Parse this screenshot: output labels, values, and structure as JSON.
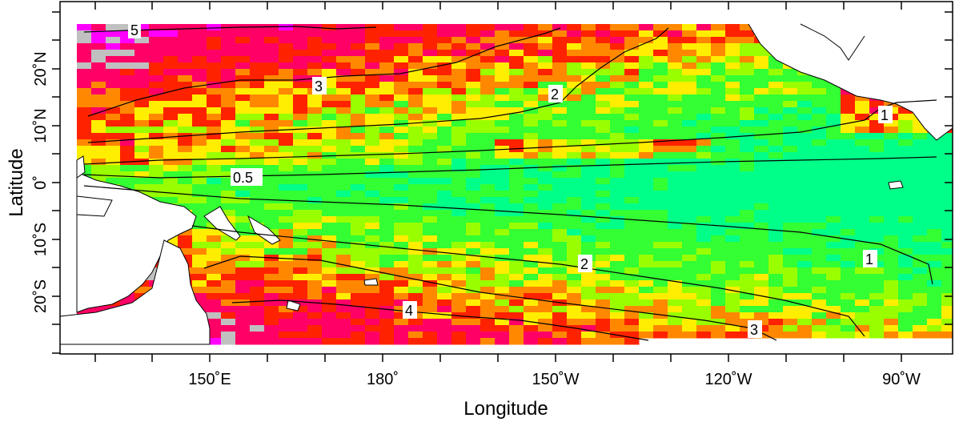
{
  "map": {
    "x_axis_title": "Longitude",
    "y_axis_title": "Latitude",
    "x_ticks": [
      "150˚E",
      "180˚",
      "150˚W",
      "120˚W",
      "90˚W"
    ],
    "y_ticks": [
      "20˚N",
      "10˚N",
      "0˚",
      "10˚S",
      "20˚S"
    ],
    "contour_labels": [
      "5",
      "3",
      "2",
      "1",
      "0.5",
      "1",
      "2",
      "4",
      "3"
    ],
    "colors": {
      "missing": "#c0c0c0",
      "magenta": "#ff00ff",
      "crimson": "#ff0066",
      "red": "#ff2200",
      "orange": "#ff8800",
      "yellow": "#ffee00",
      "lime": "#99ff00",
      "green": "#33ff33",
      "teal": "#00ff88"
    }
  }
}
